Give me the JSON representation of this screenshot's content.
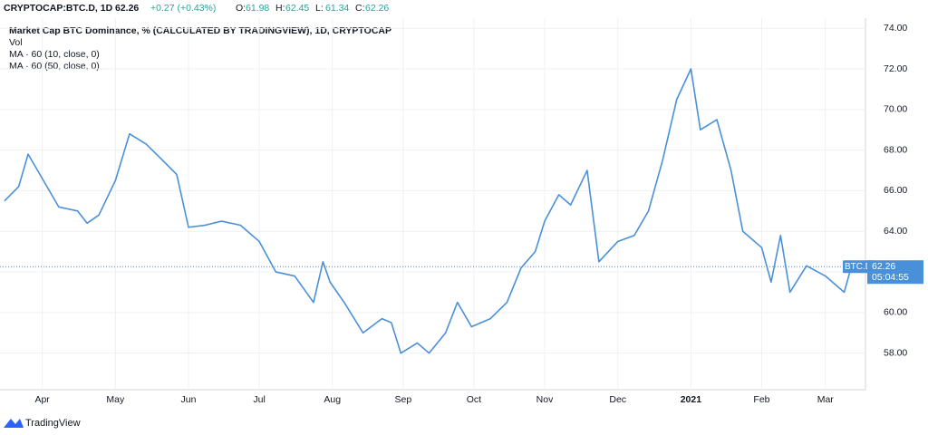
{
  "chart_data": {
    "type": "line",
    "symbol": "CRYPTOCAP:BTC.D, 1D",
    "last": "62.26",
    "change": "+0.27 (+0.43%)",
    "ohlc": [
      {
        "label": "O:",
        "value": "61.98"
      },
      {
        "label": "H:",
        "value": "62.45"
      },
      {
        "label": "L:",
        "value": "61.34"
      },
      {
        "label": "C:",
        "value": "62.26"
      }
    ],
    "title": "Market Cap BTC Dominance, % (CALCULATED BY TRADINGVIEW), 1D, CRYPTOCAP",
    "indicators": [
      "Vol",
      "MA · 60 (10, close, 0)",
      "MA · 60 (50, close, 0)"
    ],
    "price_tag": {
      "symbol": "BTC.D",
      "price": 62.26,
      "countdown": "05:04:55"
    },
    "brand": "TradingView",
    "series": [
      {
        "name": "BTC.D",
        "color": "#4a90d9",
        "x": [
          0,
          6,
          10,
          15,
          23,
          31,
          35,
          40,
          47,
          53,
          60,
          67,
          73,
          78,
          85,
          92,
          100,
          108,
          115,
          123,
          131,
          135,
          138,
          144,
          152,
          160,
          164,
          168,
          175,
          180,
          187,
          192,
          198,
          206,
          213,
          219,
          225,
          229,
          235,
          240,
          247,
          252,
          260,
          267,
          273,
          279,
          285,
          291,
          295,
          302,
          308,
          313,
          321,
          325,
          329,
          333,
          340,
          348,
          356,
          359
        ],
        "values": [
          65.5,
          66.2,
          67.8,
          66.8,
          65.2,
          65.0,
          64.4,
          64.8,
          66.5,
          68.8,
          68.3,
          67.5,
          66.8,
          64.2,
          64.3,
          64.5,
          64.3,
          63.5,
          62.0,
          61.8,
          60.5,
          62.5,
          61.5,
          60.5,
          59.0,
          59.7,
          59.5,
          58.0,
          58.5,
          58.0,
          59.0,
          60.5,
          59.3,
          59.7,
          60.5,
          62.2,
          63.0,
          64.5,
          65.8,
          65.3,
          67.0,
          62.5,
          63.5,
          63.8,
          65.0,
          67.5,
          70.5,
          72.0,
          69.0,
          69.5,
          67.0,
          64.0,
          63.2,
          61.5,
          63.8,
          61.0,
          62.3,
          61.8,
          61.0,
          62.26
        ]
      }
    ],
    "xlim": [
      0,
      365
    ],
    "xticks": [
      {
        "value": 16,
        "label": "Apr"
      },
      {
        "value": 47,
        "label": "May"
      },
      {
        "value": 78,
        "label": "Jun"
      },
      {
        "value": 108,
        "label": "Jul"
      },
      {
        "value": 139,
        "label": "Aug"
      },
      {
        "value": 169,
        "label": "Sep"
      },
      {
        "value": 199,
        "label": "Oct"
      },
      {
        "value": 229,
        "label": "Nov"
      },
      {
        "value": 260,
        "label": "Dec"
      },
      {
        "value": 291,
        "label": "2021"
      },
      {
        "value": 321,
        "label": "Feb"
      },
      {
        "value": 348,
        "label": "Mar"
      }
    ],
    "ylim": [
      56.2,
      74.5
    ],
    "yticks": [
      {
        "value": 58,
        "label": "58.00"
      },
      {
        "value": 60,
        "label": "60.00"
      },
      {
        "value": 62,
        "label": "62.00"
      },
      {
        "value": 64,
        "label": "64.00"
      },
      {
        "value": 66,
        "label": "66.00"
      },
      {
        "value": 68,
        "label": "68.00"
      },
      {
        "value": 70,
        "label": "70.00"
      },
      {
        "value": 72,
        "label": "72.00"
      },
      {
        "value": 74,
        "label": "74.00"
      }
    ],
    "grid": true
  }
}
